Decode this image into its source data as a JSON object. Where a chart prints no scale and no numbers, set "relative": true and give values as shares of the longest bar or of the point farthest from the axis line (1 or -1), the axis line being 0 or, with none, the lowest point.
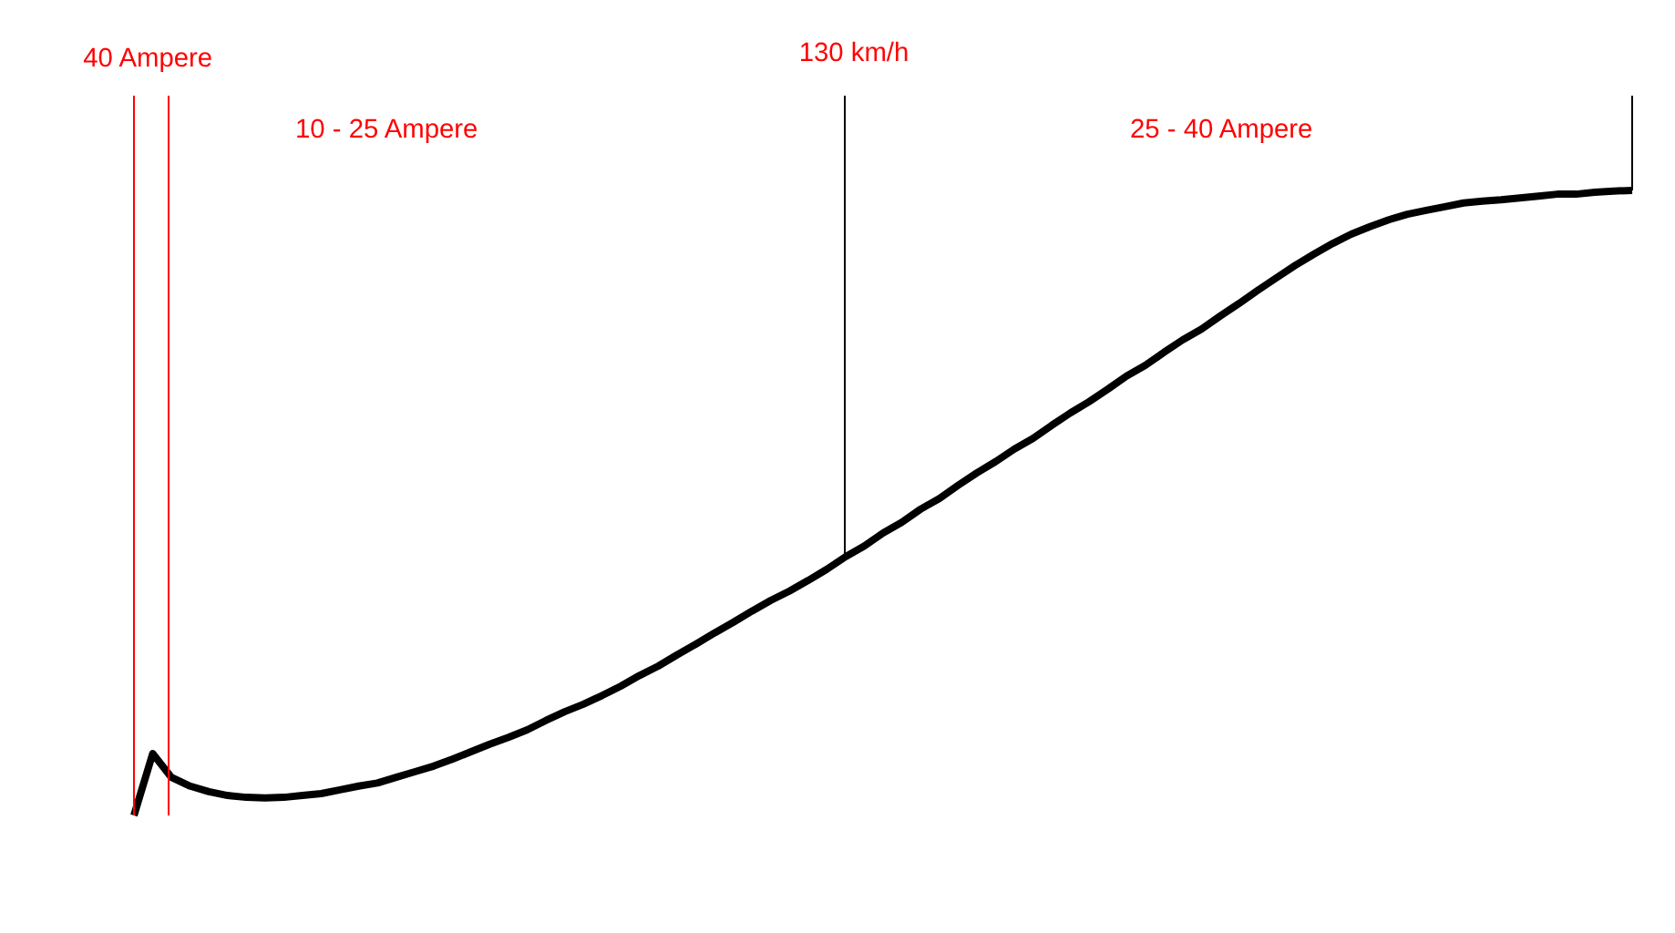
{
  "chart_data": {
    "type": "line",
    "relative": true,
    "categories": [
      null,
      null,
      null,
      null,
      null,
      null,
      null,
      null,
      null,
      null,
      null,
      null,
      null,
      null,
      null,
      null,
      null,
      null,
      null,
      null,
      null,
      null,
      null,
      null,
      null,
      null,
      null,
      null,
      null,
      null,
      null,
      null,
      null,
      null,
      null,
      null,
      null,
      null,
      null,
      null,
      null,
      null,
      null,
      null,
      null,
      null,
      null,
      null,
      null,
      null,
      null,
      null,
      null,
      null,
      null,
      null,
      null,
      null,
      null,
      null,
      null,
      null,
      null,
      null,
      null,
      null,
      null,
      null,
      null,
      null,
      null,
      null,
      null,
      null,
      null,
      null,
      null,
      null,
      null,
      null,
      null
    ],
    "series": [
      {
        "color": "#000000",
        "values": [
          0,
          0.099,
          0.061,
          0.047,
          0.038,
          0.032,
          0.029,
          0.028,
          0.029,
          0.032,
          0.035,
          0.041,
          0.047,
          0.052,
          0.061,
          0.07,
          0.079,
          0.09,
          0.102,
          0.114,
          0.125,
          0.137,
          0.152,
          0.166,
          0.178,
          0.192,
          0.207,
          0.224,
          0.239,
          0.257,
          0.274,
          0.292,
          0.309,
          0.327,
          0.344,
          0.359,
          0.376,
          0.394,
          0.414,
          0.431,
          0.452,
          0.469,
          0.49,
          0.507,
          0.528,
          0.548,
          0.566,
          0.586,
          0.603,
          0.624,
          0.644,
          0.662,
          0.682,
          0.703,
          0.72,
          0.741,
          0.761,
          0.778,
          0.799,
          0.819,
          0.84,
          0.86,
          0.88,
          0.898,
          0.915,
          0.93,
          0.942,
          0.953,
          0.962,
          0.968,
          0.974,
          0.98,
          0.983,
          0.985,
          0.988,
          0.991,
          0.994,
          0.994,
          0.997,
          0.999,
          1
        ]
      }
    ],
    "annotations": [
      "40 Ampere",
      "10 - 25 Ampere",
      "130 km/h",
      "25 - 40 Ampere"
    ],
    "marker": "none",
    "line_style": "solid"
  }
}
